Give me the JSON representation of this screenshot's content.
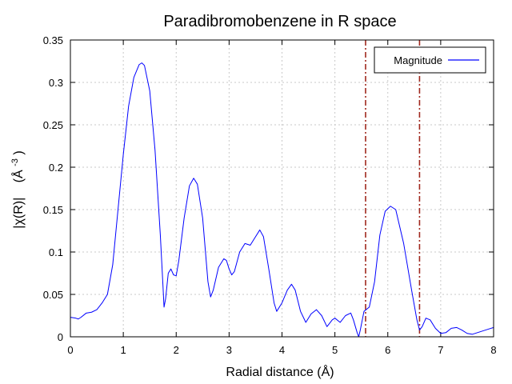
{
  "chart_data": {
    "type": "line",
    "title": "Paradibromobenzene in R space",
    "xlabel": "Radial distance    (Å)",
    "ylabel_main": "|χ(R)|",
    "ylabel_unit_base": "(Å",
    "ylabel_unit_exp": "-3",
    "ylabel_unit_close": ")",
    "xlim": [
      0,
      8
    ],
    "ylim": [
      0,
      0.35
    ],
    "xticks": [
      "0",
      "1",
      "2",
      "3",
      "4",
      "5",
      "6",
      "7",
      "8"
    ],
    "yticks": [
      "0",
      "0.05",
      "0.1",
      "0.15",
      "0.2",
      "0.25",
      "0.3",
      "0.35"
    ],
    "grid": true,
    "legend_position": "top-right",
    "series": [
      {
        "name": "Magnitude",
        "color": "#0000ff",
        "points": [
          [
            0.0,
            0.023
          ],
          [
            0.1,
            0.022
          ],
          [
            0.15,
            0.021
          ],
          [
            0.2,
            0.023
          ],
          [
            0.3,
            0.028
          ],
          [
            0.4,
            0.029
          ],
          [
            0.5,
            0.032
          ],
          [
            0.6,
            0.04
          ],
          [
            0.7,
            0.05
          ],
          [
            0.8,
            0.085
          ],
          [
            0.9,
            0.15
          ],
          [
            1.0,
            0.215
          ],
          [
            1.1,
            0.272
          ],
          [
            1.2,
            0.306
          ],
          [
            1.3,
            0.321
          ],
          [
            1.35,
            0.323
          ],
          [
            1.4,
            0.32
          ],
          [
            1.5,
            0.29
          ],
          [
            1.6,
            0.22
          ],
          [
            1.7,
            0.12
          ],
          [
            1.75,
            0.06
          ],
          [
            1.77,
            0.035
          ],
          [
            1.8,
            0.045
          ],
          [
            1.85,
            0.075
          ],
          [
            1.9,
            0.08
          ],
          [
            1.95,
            0.073
          ],
          [
            2.0,
            0.072
          ],
          [
            2.05,
            0.09
          ],
          [
            2.15,
            0.14
          ],
          [
            2.25,
            0.178
          ],
          [
            2.33,
            0.187
          ],
          [
            2.4,
            0.18
          ],
          [
            2.5,
            0.14
          ],
          [
            2.6,
            0.065
          ],
          [
            2.65,
            0.047
          ],
          [
            2.7,
            0.055
          ],
          [
            2.8,
            0.082
          ],
          [
            2.9,
            0.092
          ],
          [
            2.95,
            0.09
          ],
          [
            3.0,
            0.08
          ],
          [
            3.05,
            0.073
          ],
          [
            3.1,
            0.077
          ],
          [
            3.2,
            0.1
          ],
          [
            3.3,
            0.11
          ],
          [
            3.4,
            0.108
          ],
          [
            3.5,
            0.118
          ],
          [
            3.58,
            0.126
          ],
          [
            3.65,
            0.118
          ],
          [
            3.75,
            0.08
          ],
          [
            3.85,
            0.04
          ],
          [
            3.9,
            0.03
          ],
          [
            4.0,
            0.04
          ],
          [
            4.1,
            0.055
          ],
          [
            4.18,
            0.062
          ],
          [
            4.25,
            0.055
          ],
          [
            4.35,
            0.03
          ],
          [
            4.45,
            0.017
          ],
          [
            4.55,
            0.027
          ],
          [
            4.65,
            0.032
          ],
          [
            4.75,
            0.025
          ],
          [
            4.85,
            0.012
          ],
          [
            4.95,
            0.02
          ],
          [
            5.0,
            0.022
          ],
          [
            5.1,
            0.017
          ],
          [
            5.2,
            0.025
          ],
          [
            5.3,
            0.028
          ],
          [
            5.35,
            0.02
          ],
          [
            5.42,
            0.005
          ],
          [
            5.45,
            0.0
          ],
          [
            5.48,
            0.008
          ],
          [
            5.55,
            0.03
          ],
          [
            5.65,
            0.035
          ],
          [
            5.75,
            0.065
          ],
          [
            5.85,
            0.12
          ],
          [
            5.95,
            0.148
          ],
          [
            6.05,
            0.154
          ],
          [
            6.15,
            0.15
          ],
          [
            6.3,
            0.11
          ],
          [
            6.45,
            0.055
          ],
          [
            6.55,
            0.02
          ],
          [
            6.6,
            0.008
          ],
          [
            6.65,
            0.012
          ],
          [
            6.72,
            0.022
          ],
          [
            6.8,
            0.02
          ],
          [
            6.9,
            0.01
          ],
          [
            7.0,
            0.004
          ],
          [
            7.1,
            0.005
          ],
          [
            7.2,
            0.01
          ],
          [
            7.3,
            0.011
          ],
          [
            7.4,
            0.008
          ],
          [
            7.5,
            0.004
          ],
          [
            7.6,
            0.003
          ],
          [
            7.7,
            0.005
          ],
          [
            7.8,
            0.007
          ],
          [
            7.9,
            0.009
          ],
          [
            8.0,
            0.011
          ]
        ]
      }
    ],
    "window_lines": {
      "x": [
        5.58,
        6.6
      ],
      "color": "#a0281e"
    }
  }
}
